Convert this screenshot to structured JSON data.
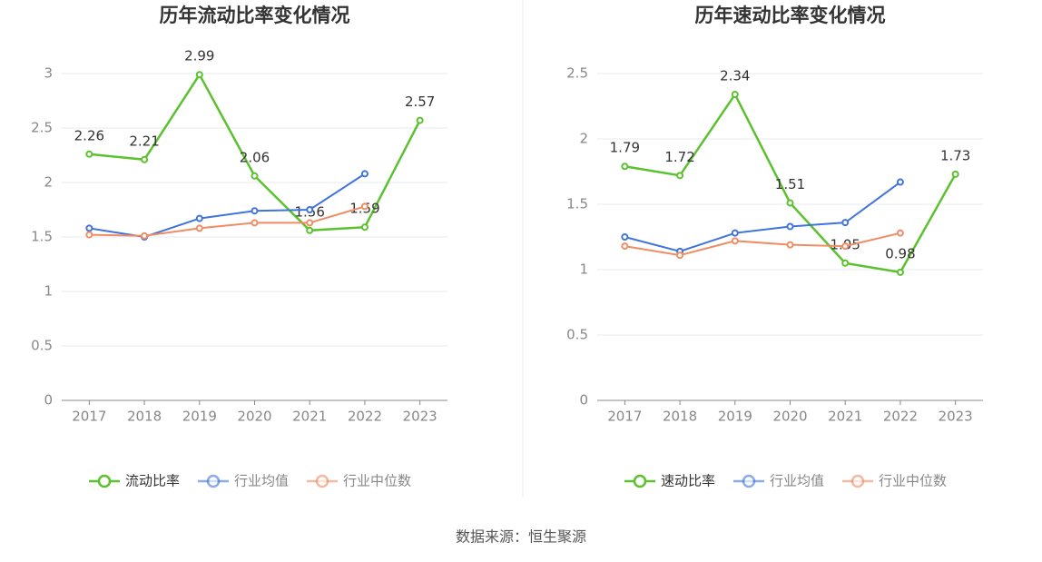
{
  "chart_data": [
    {
      "type": "line",
      "title": "历年流动比率变化情况",
      "categories": [
        "2017",
        "2018",
        "2019",
        "2020",
        "2021",
        "2022",
        "2023"
      ],
      "ylim": [
        0,
        3
      ],
      "yticks": [
        0,
        0.5,
        1,
        1.5,
        2,
        2.5,
        3
      ],
      "grid": true,
      "legend": "bottom",
      "series": [
        {
          "name": "流动比率",
          "color": "#5cc12f",
          "values": [
            2.26,
            2.21,
            2.99,
            2.06,
            1.56,
            1.59,
            2.57
          ]
        },
        {
          "name": "行业均值",
          "color": "#3f74dc",
          "values": [
            1.58,
            1.5,
            1.67,
            1.74,
            1.75,
            2.08,
            null
          ]
        },
        {
          "name": "行业中位数",
          "color": "#f08c64",
          "values": [
            1.52,
            1.51,
            1.58,
            1.63,
            1.63,
            1.78,
            null
          ]
        }
      ]
    },
    {
      "type": "line",
      "title": "历年速动比率变化情况",
      "categories": [
        "2017",
        "2018",
        "2019",
        "2020",
        "2021",
        "2022",
        "2023"
      ],
      "ylim": [
        0,
        2.5
      ],
      "yticks": [
        0,
        0.5,
        1,
        1.5,
        2,
        2.5
      ],
      "grid": true,
      "legend": "bottom",
      "series": [
        {
          "name": "速动比率",
          "color": "#5cc12f",
          "values": [
            1.79,
            1.72,
            2.34,
            1.51,
            1.05,
            0.98,
            1.73
          ]
        },
        {
          "name": "行业均值",
          "color": "#3f74dc",
          "values": [
            1.25,
            1.14,
            1.28,
            1.33,
            1.36,
            1.67,
            null
          ]
        },
        {
          "name": "行业中位数",
          "color": "#f08c64",
          "values": [
            1.18,
            1.11,
            1.22,
            1.19,
            1.18,
            1.28,
            null
          ]
        }
      ]
    }
  ],
  "source": "数据来源：恒生聚源"
}
